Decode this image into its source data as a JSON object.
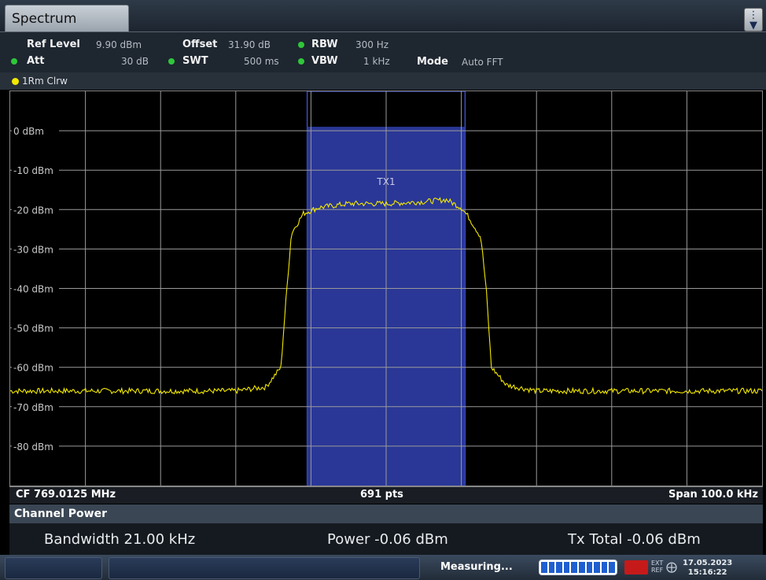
{
  "window": {
    "tab_label": "Spectrum",
    "menu_icon": "menu-icon"
  },
  "settings": {
    "ref_level_label": "Ref Level",
    "ref_level_value": "9.90 dBm",
    "offset_label": "Offset",
    "offset_value": "31.90 dB",
    "rbw_label": "RBW",
    "rbw_value": "300 Hz",
    "att_label": "Att",
    "att_value": "30 dB",
    "swt_label": "SWT",
    "swt_value": "500 ms",
    "vbw_label": "VBW",
    "vbw_value": "1 kHz",
    "mode_label": "Mode",
    "mode_value": "Auto FFT",
    "indicator_color": "#2fc73a"
  },
  "trace": {
    "label": "1Rm Clrw",
    "color": "#f2e800"
  },
  "plot": {
    "cf_label": "CF 769.0125 MHz",
    "points_label": "691 pts",
    "span_label": "Span 100.0 kHz",
    "channel_label": "TX1",
    "channel_color": "#2c3a9e"
  },
  "chart_data": {
    "type": "line",
    "ylabels": [
      "0 dBm",
      "-10 dBm",
      "-20 dBm",
      "-30 dBm",
      "-40 dBm",
      "-50 dBm",
      "-60 dBm",
      "-70 dBm",
      "-80 dBm"
    ],
    "y_ticks": [
      0,
      -10,
      -20,
      -30,
      -40,
      -50,
      -60,
      -70,
      -80
    ],
    "ylim": [
      -90,
      10
    ],
    "x_range_khz": [
      -50,
      50
    ],
    "channel_khz": [
      -10.5,
      10.5
    ],
    "series": [
      {
        "values_khz_dbm": [
          [
            -50,
            -66
          ],
          [
            -40,
            -66
          ],
          [
            -30,
            -66
          ],
          [
            -20,
            -66
          ],
          [
            -16,
            -65
          ],
          [
            -14,
            -60
          ],
          [
            -13.2,
            -40
          ],
          [
            -12.6,
            -26
          ],
          [
            -11,
            -21
          ],
          [
            -9,
            -19.5
          ],
          [
            -5,
            -18.5
          ],
          [
            0,
            -18.5
          ],
          [
            5,
            -18
          ],
          [
            8,
            -17.5
          ],
          [
            10,
            -19.5
          ],
          [
            11,
            -22
          ],
          [
            12.6,
            -27
          ],
          [
            13.3,
            -40
          ],
          [
            14,
            -60
          ],
          [
            16,
            -64.5
          ],
          [
            20,
            -66
          ],
          [
            30,
            -66
          ],
          [
            40,
            -66
          ],
          [
            50,
            -66
          ]
        ]
      }
    ],
    "grid": true
  },
  "channel_power": {
    "title": "Channel Power",
    "bandwidth": "Bandwidth 21.00 kHz",
    "power": "Power -0.06 dBm",
    "tx_total": "Tx Total -0.06 dBm"
  },
  "status": {
    "measuring": "Measuring...",
    "progress": 1.0,
    "ext_ref_label_1": "EXT",
    "ext_ref_label_2": "REF",
    "date": "17.05.2023",
    "time": "15:16:22"
  }
}
